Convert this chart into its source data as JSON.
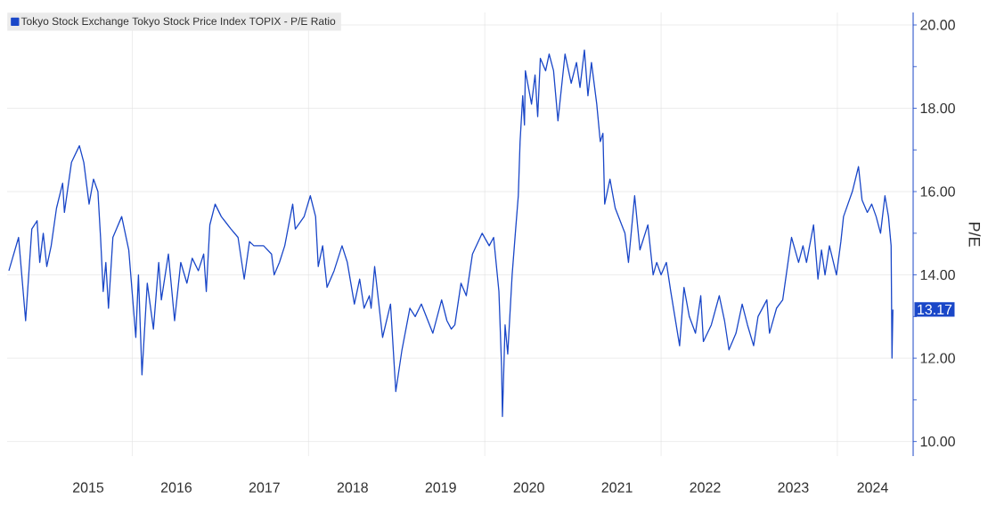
{
  "chart_data": {
    "type": "line",
    "ylabel": "P/E",
    "legend": "top left",
    "grid": true,
    "xlim": [
      2014.58,
      2024.86
    ],
    "ylim": [
      9.65,
      20.3
    ],
    "xticks": [
      {
        "value": 2015.5,
        "label": "2015"
      },
      {
        "value": 2016.5,
        "label": "2016"
      },
      {
        "value": 2017.5,
        "label": "2017"
      },
      {
        "value": 2018.5,
        "label": "2018"
      },
      {
        "value": 2019.5,
        "label": "2019"
      },
      {
        "value": 2020.5,
        "label": "2020"
      },
      {
        "value": 2021.5,
        "label": "2021"
      },
      {
        "value": 2022.5,
        "label": "2022"
      },
      {
        "value": 2023.5,
        "label": "2023"
      },
      {
        "value": 2024.4,
        "label": "2024"
      },
      {
        "value": 2016,
        "label": null
      },
      {
        "value": 2018,
        "label": null
      },
      {
        "value": 2020,
        "label": null
      },
      {
        "value": 2022,
        "label": null
      },
      {
        "value": 2024,
        "label": null
      }
    ],
    "yticks": [
      {
        "value": 10,
        "label": "10.00"
      },
      {
        "value": 12,
        "label": "12.00"
      },
      {
        "value": 14,
        "label": "14.00"
      },
      {
        "value": 16,
        "label": "16.00"
      },
      {
        "value": 18,
        "label": "18.00"
      },
      {
        "value": 20,
        "label": "20.00"
      },
      {
        "value": 11,
        "label": null
      },
      {
        "value": 13,
        "label": null
      },
      {
        "value": 15,
        "label": null
      },
      {
        "value": 17,
        "label": null
      },
      {
        "value": 19,
        "label": null
      }
    ],
    "x": [
      2014.6,
      2014.71,
      2014.79,
      2014.86,
      2014.92,
      2014.95,
      2014.99,
      2015.03,
      2015.08,
      2015.14,
      2015.21,
      2015.23,
      2015.31,
      2015.4,
      2015.45,
      2015.51,
      2015.56,
      2015.61,
      2015.64,
      2015.67,
      2015.7,
      2015.73,
      2015.78,
      2015.88,
      2015.96,
      2016.04,
      2016.07,
      2016.11,
      2016.17,
      2016.24,
      2016.3,
      2016.33,
      2016.41,
      2016.48,
      2016.55,
      2016.62,
      2016.68,
      2016.75,
      2016.81,
      2016.84,
      2016.88,
      2016.94,
      2017.01,
      2017.12,
      2017.2,
      2017.27,
      2017.33,
      2017.38,
      2017.49,
      2017.58,
      2017.61,
      2017.67,
      2017.73,
      2017.82,
      2017.85,
      2017.95,
      2018.02,
      2018.08,
      2018.11,
      2018.16,
      2018.21,
      2018.29,
      2018.38,
      2018.44,
      2018.52,
      2018.58,
      2018.63,
      2018.69,
      2018.71,
      2018.75,
      2018.84,
      2018.93,
      2018.99,
      2019.06,
      2019.15,
      2019.21,
      2019.28,
      2019.41,
      2019.51,
      2019.57,
      2019.62,
      2019.66,
      2019.73,
      2019.79,
      2019.86,
      2019.97,
      2020.05,
      2020.1,
      2020.16,
      2020.19,
      2020.2,
      2020.23,
      2020.26,
      2020.31,
      2020.35,
      2020.38,
      2020.4,
      2020.43,
      2020.45,
      2020.46,
      2020.53,
      2020.57,
      2020.6,
      2020.63,
      2020.69,
      2020.73,
      2020.78,
      2020.83,
      2020.91,
      2020.98,
      2021.04,
      2021.08,
      2021.13,
      2021.17,
      2021.21,
      2021.27,
      2021.31,
      2021.34,
      2021.36,
      2021.42,
      2021.48,
      2021.59,
      2021.63,
      2021.7,
      2021.76,
      2021.85,
      2021.91,
      2021.95,
      2022.0,
      2022.06,
      2022.11,
      2022.21,
      2022.26,
      2022.32,
      2022.39,
      2022.45,
      2022.48,
      2022.57,
      2022.66,
      2022.72,
      2022.77,
      2022.85,
      2022.92,
      2022.98,
      2023.05,
      2023.1,
      2023.2,
      2023.23,
      2023.31,
      2023.38,
      2023.42,
      2023.48,
      2023.56,
      2023.61,
      2023.65,
      2023.73,
      2023.78,
      2023.82,
      2023.86,
      2023.91,
      2023.99,
      2024.04,
      2024.07,
      2024.17,
      2024.24,
      2024.28,
      2024.34,
      2024.39,
      2024.44,
      2024.49,
      2024.54,
      2024.58,
      2024.61,
      2024.62,
      2024.63
    ],
    "series": [
      {
        "name": "Tokyo Stock Exchange Tokyo Stock Price Index TOPIX - P/E Ratio",
        "color": "#1a47c8",
        "values": [
          14.1,
          14.9,
          12.9,
          15.1,
          15.3,
          14.3,
          15.0,
          14.2,
          14.7,
          15.6,
          16.2,
          15.5,
          16.7,
          17.1,
          16.7,
          15.7,
          16.3,
          16.0,
          14.9,
          13.6,
          14.3,
          13.2,
          14.9,
          15.4,
          14.6,
          12.5,
          14.0,
          11.6,
          13.8,
          12.7,
          14.3,
          13.4,
          14.5,
          12.9,
          14.3,
          13.8,
          14.4,
          14.1,
          14.5,
          13.6,
          15.2,
          15.7,
          15.4,
          15.1,
          14.9,
          13.9,
          14.8,
          14.7,
          14.7,
          14.5,
          14.0,
          14.3,
          14.7,
          15.7,
          15.1,
          15.4,
          15.9,
          15.4,
          14.2,
          14.7,
          13.7,
          14.1,
          14.7,
          14.3,
          13.3,
          13.9,
          13.2,
          13.5,
          13.2,
          14.2,
          12.5,
          13.3,
          11.2,
          12.2,
          13.2,
          13.0,
          13.3,
          12.6,
          13.4,
          12.9,
          12.7,
          12.8,
          13.8,
          13.5,
          14.5,
          15.0,
          14.7,
          14.9,
          13.6,
          11.8,
          10.6,
          12.8,
          12.1,
          14.0,
          15.1,
          15.9,
          17.2,
          18.3,
          17.6,
          18.9,
          18.1,
          18.8,
          17.8,
          19.2,
          18.9,
          19.3,
          18.9,
          17.7,
          19.3,
          18.6,
          19.1,
          18.5,
          19.4,
          18.3,
          19.1,
          18.1,
          17.2,
          17.4,
          15.7,
          16.3,
          15.6,
          15.0,
          14.3,
          15.9,
          14.6,
          15.2,
          14.0,
          14.3,
          14.0,
          14.3,
          13.6,
          12.3,
          13.7,
          13.0,
          12.6,
          13.5,
          12.4,
          12.8,
          13.5,
          12.9,
          12.2,
          12.6,
          13.3,
          12.8,
          12.3,
          13.0,
          13.4,
          12.6,
          13.2,
          13.4,
          14.0,
          14.9,
          14.3,
          14.7,
          14.3,
          15.2,
          13.9,
          14.6,
          14.0,
          14.7,
          14.0,
          14.8,
          15.4,
          16.0,
          16.6,
          15.8,
          15.5,
          15.7,
          15.4,
          15.0,
          15.9,
          15.4,
          14.7,
          12.0,
          13.17
        ],
        "value_labels": [
          null,
          null,
          null,
          null,
          null,
          null,
          null,
          null,
          null,
          null,
          null,
          null,
          null,
          null,
          null,
          null,
          null,
          null,
          null,
          null,
          null,
          null,
          null,
          null,
          null,
          null,
          null,
          null,
          null,
          null,
          null,
          null,
          null,
          null,
          null,
          null,
          null,
          null,
          null,
          null,
          null,
          null,
          null,
          null,
          null,
          null,
          null,
          null,
          null,
          null,
          null,
          null,
          null,
          null,
          null,
          null,
          null,
          null,
          null,
          null,
          null,
          null,
          null,
          null,
          null,
          null,
          null,
          null,
          null,
          null,
          null,
          null,
          null,
          null,
          null,
          null,
          null,
          null,
          null,
          null,
          null,
          null,
          null,
          null,
          null,
          null,
          null,
          null,
          null,
          null,
          null,
          null,
          null,
          null,
          null,
          null,
          null,
          null,
          null,
          null,
          null,
          null,
          null,
          null,
          null,
          null,
          null,
          null,
          null,
          null,
          null,
          null,
          null,
          null,
          null,
          null,
          null,
          null,
          null,
          null,
          null,
          null,
          null,
          null,
          null,
          null,
          null,
          null,
          null,
          null,
          null,
          null,
          null,
          null,
          null,
          null,
          null,
          null,
          null,
          null,
          null,
          null,
          null,
          null,
          null,
          null,
          null,
          null,
          null,
          null,
          null,
          null,
          null,
          null,
          null,
          null,
          null,
          null,
          null,
          null,
          null,
          null,
          null,
          null,
          null,
          null,
          null,
          null,
          null,
          null,
          null,
          null,
          null,
          null,
          "13.17"
        ]
      }
    ]
  }
}
